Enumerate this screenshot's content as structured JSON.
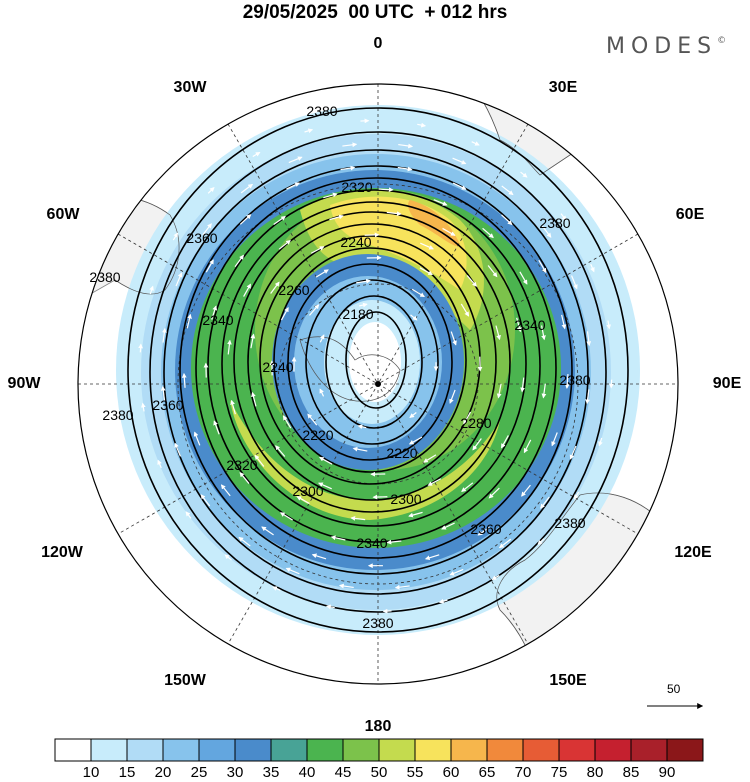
{
  "title": "29/05/2025  00 UTC  + 012 hrs",
  "brand": "MODES",
  "brand_mark": "©",
  "lon_labels": {
    "0": "0",
    "30E": "30E",
    "60E": "60E",
    "90E": "90E",
    "120E": "120E",
    "150E": "150E",
    "180": "180",
    "150W": "150W",
    "120W": "120W",
    "90W": "90W",
    "60W": "60W",
    "30W": "30W"
  },
  "wind_scale": {
    "label": "50",
    "icon": "arrow-right-icon"
  },
  "contour_labels": [
    "2380",
    "2380",
    "2380",
    "2380",
    "2380",
    "2380",
    "2380",
    "2360",
    "2360",
    "2360",
    "2340",
    "2340",
    "2340",
    "2320",
    "2320",
    "2300",
    "2300",
    "2280",
    "2260",
    "2240",
    "2240",
    "2220",
    "2220",
    "2180"
  ],
  "colorbar": {
    "ticks": [
      "10",
      "15",
      "20",
      "25",
      "30",
      "35",
      "40",
      "45",
      "50",
      "55",
      "60",
      "65",
      "70",
      "75",
      "80",
      "85",
      "90"
    ],
    "colors": [
      "#ffffff",
      "#c8ecfb",
      "#b1dcf6",
      "#87c3ec",
      "#63a6df",
      "#4a8bcb",
      "#48a396",
      "#4bb44f",
      "#7cc24b",
      "#c4db4e",
      "#f7e35c",
      "#f6b64c",
      "#f1893b",
      "#e75c35",
      "#d93434",
      "#c5202f",
      "#a9202a",
      "#8b1719"
    ]
  },
  "colors": {
    "land": "#f2f2f2",
    "coast": "#888888",
    "contour": "#000000",
    "wind_vector": "#ffffff"
  }
}
